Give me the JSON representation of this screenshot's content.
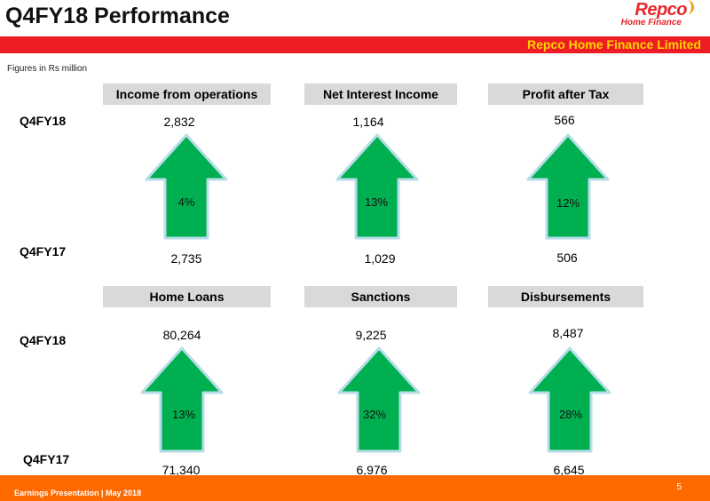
{
  "header": {
    "title": "Q4FY18 Performance",
    "company": "Repco Home Finance Limited"
  },
  "logo": {
    "name": "Repco",
    "tagline": "Home Finance"
  },
  "note": "Figures in Rs million",
  "colors": {
    "arrow_fill": "#00b050",
    "arrow_stroke": "#b7dde8",
    "red_bar": "#ee1c24",
    "footer_bar": "#ff6a00",
    "header_box": "#d9d9d9"
  },
  "row1": {
    "label_current": "Q4FY18",
    "label_prior": "Q4FY17",
    "metrics": [
      {
        "name": "Income from operations",
        "current": "2,832",
        "prior": "2,735",
        "growth": "4%"
      },
      {
        "name": "Net Interest Income",
        "current": "1,164",
        "prior": "1,029",
        "growth": "13%"
      },
      {
        "name": "Profit after Tax",
        "current": "566",
        "prior": "506",
        "growth": "12%"
      }
    ]
  },
  "row2": {
    "label_current": "Q4FY18",
    "label_prior": "Q4FY17",
    "metrics": [
      {
        "name": "Home Loans",
        "current": "80,264",
        "prior": "71,340",
        "growth": "13%"
      },
      {
        "name": "Sanctions",
        "current": "9,225",
        "prior": "6,976",
        "growth": "32%"
      },
      {
        "name": "Disbursements",
        "current": "8,487",
        "prior": "6,645",
        "growth": "28%"
      }
    ]
  },
  "footer": {
    "text": "Earnings Presentation | May 2018",
    "page": "5"
  }
}
